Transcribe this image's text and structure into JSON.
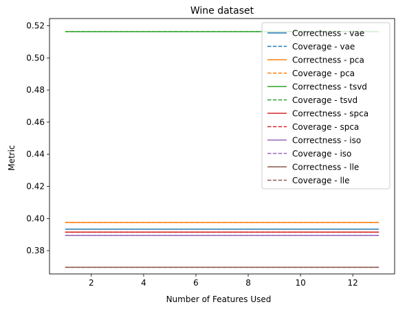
{
  "chart_data": {
    "type": "line",
    "title": "Wine dataset",
    "xlabel": "Number of Features Used",
    "ylabel": "Metric",
    "xlim": [
      0.4,
      13.6
    ],
    "ylim": [
      0.3655,
      0.5245
    ],
    "x_ticks": [
      2,
      4,
      6,
      8,
      10,
      12
    ],
    "y_ticks": [
      0.38,
      0.4,
      0.42,
      0.44,
      0.46,
      0.48,
      0.5,
      0.52
    ],
    "x_tick_labels": [
      "2",
      "4",
      "6",
      "8",
      "10",
      "12"
    ],
    "y_tick_labels": [
      "0.38",
      "0.40",
      "0.42",
      "0.44",
      "0.46",
      "0.48",
      "0.50",
      "0.52"
    ],
    "grid": false,
    "legend_position": "top-right",
    "x": [
      1,
      2,
      3,
      4,
      5,
      6,
      7,
      8,
      9,
      10,
      11,
      12,
      13
    ],
    "series": [
      {
        "name": "Correctness - vae",
        "color": "#1f77b4",
        "dash": "solid",
        "value": 0.3934
      },
      {
        "name": "Coverage - vae",
        "color": "#1f77b4",
        "dash": "dashed",
        "value": 0.3934
      },
      {
        "name": "Correctness - pca",
        "color": "#ff7f0e",
        "dash": "solid",
        "value": 0.3975
      },
      {
        "name": "Coverage - pca",
        "color": "#ff7f0e",
        "dash": "dashed",
        "value": 0.3975
      },
      {
        "name": "Correctness - tsvd",
        "color": "#2ca02c",
        "dash": "solid",
        "value": 0.5163
      },
      {
        "name": "Coverage - tsvd",
        "color": "#2ca02c",
        "dash": "dashed",
        "value": 0.5163
      },
      {
        "name": "Correctness - spca",
        "color": "#d62728",
        "dash": "solid",
        "value": 0.3915
      },
      {
        "name": "Coverage - spca",
        "color": "#d62728",
        "dash": "dashed",
        "value": 0.3915
      },
      {
        "name": "Correctness - iso",
        "color": "#9467bd",
        "dash": "solid",
        "value": 0.3895
      },
      {
        "name": "Coverage - iso",
        "color": "#9467bd",
        "dash": "dashed",
        "value": 0.3895
      },
      {
        "name": "Correctness - lle",
        "color": "#8c564b",
        "dash": "solid",
        "value": 0.3696
      },
      {
        "name": "Coverage - lle",
        "color": "#8c564b",
        "dash": "dashed",
        "value": 0.3696
      }
    ]
  }
}
